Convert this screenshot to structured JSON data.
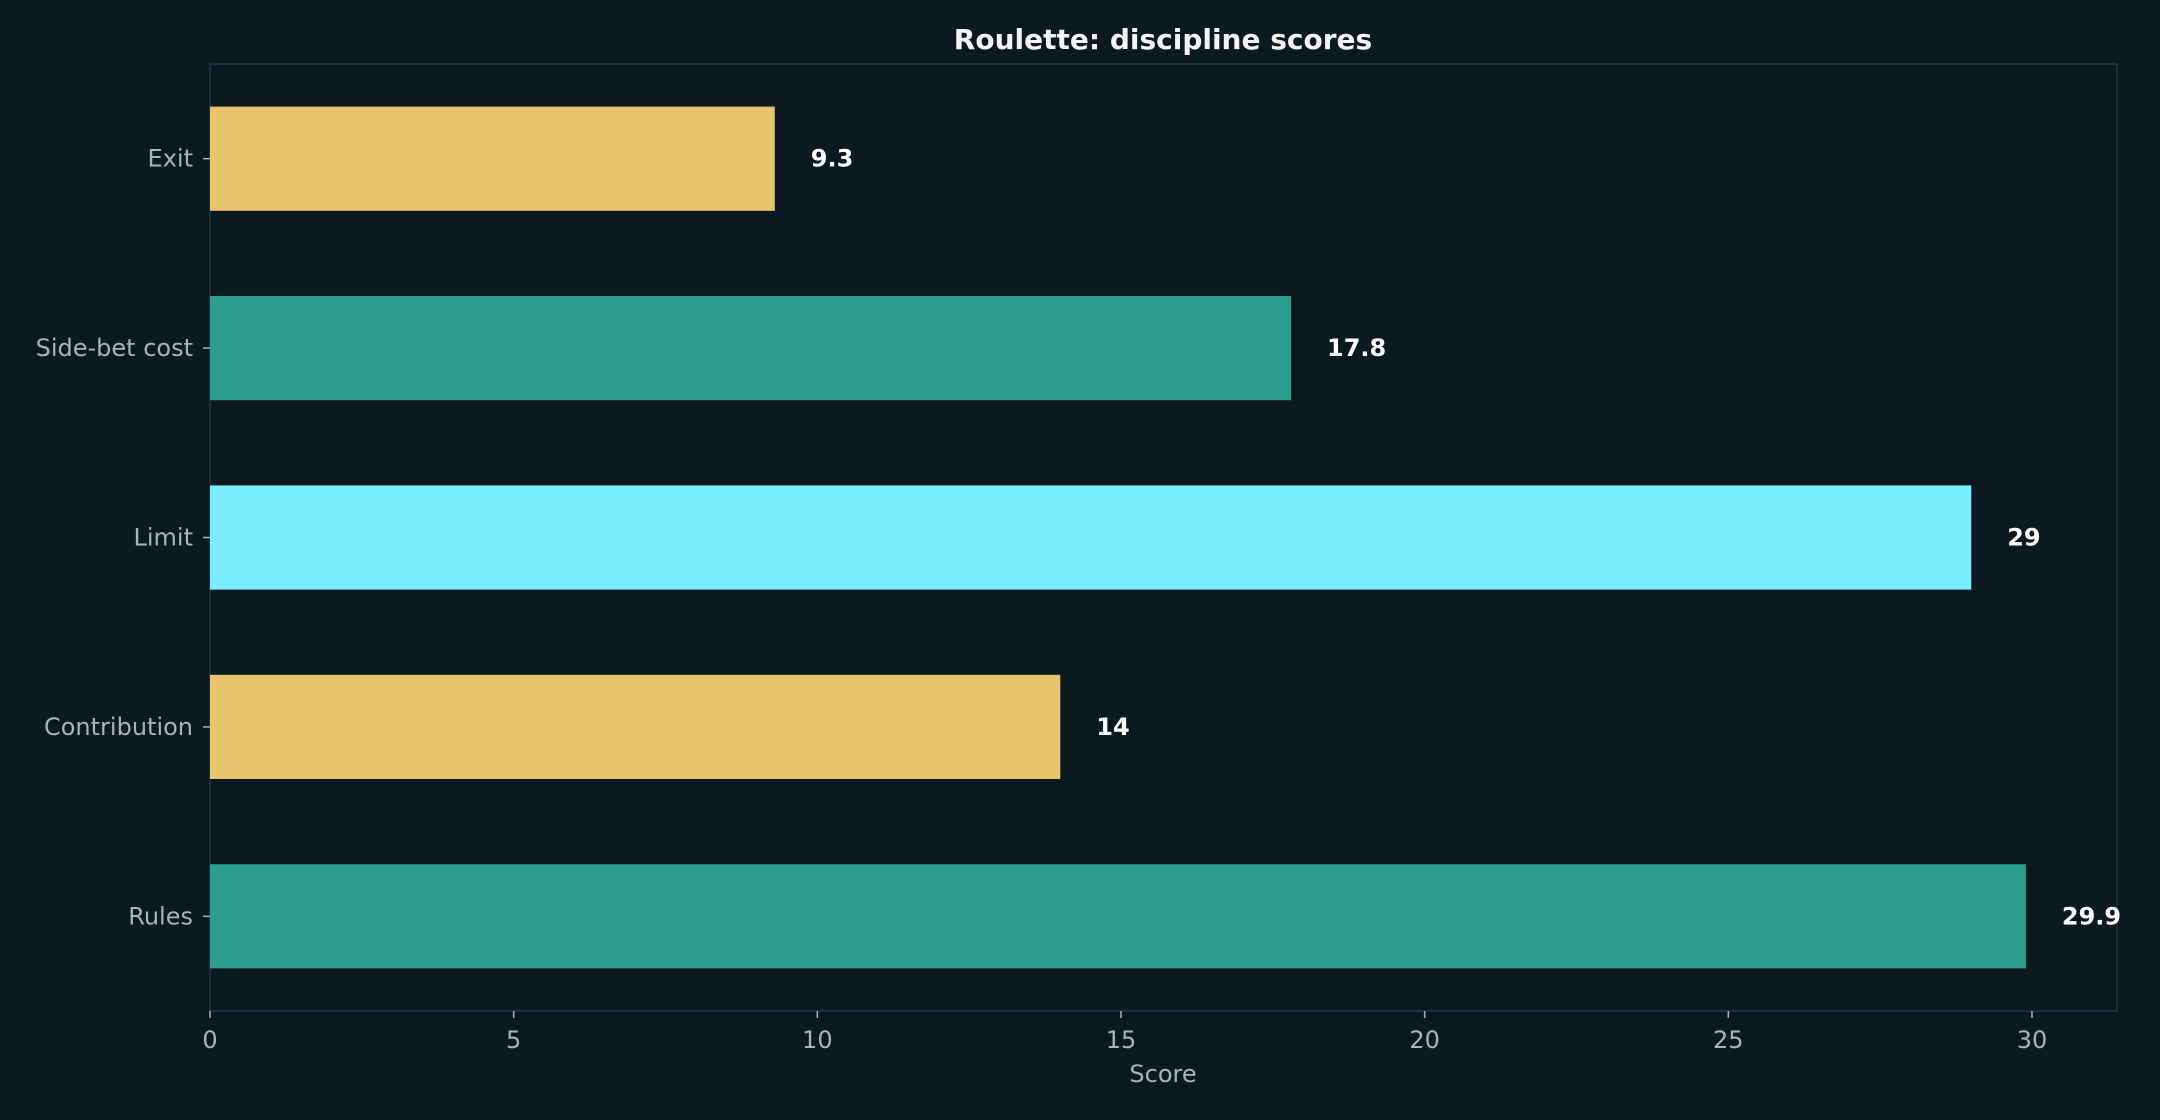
{
  "chart_data": {
    "type": "bar",
    "orientation": "horizontal",
    "title": "Roulette: discipline scores",
    "xlabel": "Score",
    "ylabel": "",
    "categories": [
      "Exit",
      "Side-bet cost",
      "Limit",
      "Contribution",
      "Rules"
    ],
    "values": [
      9.3,
      17.8,
      29,
      14,
      29.9
    ],
    "value_labels": [
      "9.3",
      "17.8",
      "29",
      "14",
      "29.9"
    ],
    "colors": [
      "#e8c46c",
      "#2a9d8f",
      "#7aedfe",
      "#e8c46c",
      "#2a9d8f"
    ],
    "xlim": [
      0,
      31.4
    ],
    "xticks": [
      0,
      5,
      10,
      15,
      20,
      25,
      30
    ],
    "grid": false,
    "legend": "none"
  },
  "theme": {
    "background": "#0c1a20",
    "text": "#aab4b8",
    "title": "#f4f4f4",
    "value_label": "#ffffff",
    "frame": "#26324a"
  }
}
